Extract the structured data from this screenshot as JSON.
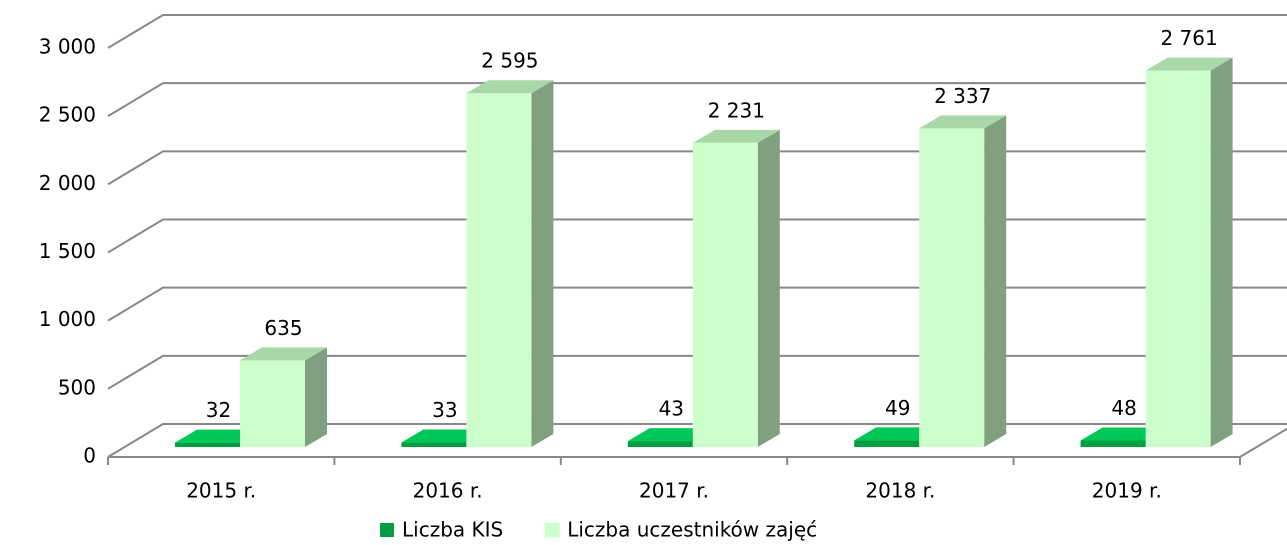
{
  "chart_data": {
    "type": "bar3d",
    "categories": [
      "2015 r.",
      "2016 r.",
      "2017 r.",
      "2018 r.",
      "2019 r."
    ],
    "series": [
      {
        "name": "Liczba KIS",
        "color": "#00a040",
        "values": [
          32,
          33,
          43,
          49,
          48
        ]
      },
      {
        "name": "Liczba uczestników zajęć",
        "color": "#ccffcc",
        "values": [
          635,
          2595,
          2231,
          2337,
          2761
        ],
        "value_labels": [
          "635",
          "2 595",
          "2 231",
          "2 337",
          "2 761"
        ]
      }
    ],
    "ylim": [
      0,
      3000
    ],
    "yticks": [
      0,
      500,
      {
        "value": 1000,
        "label": "1 000"
      },
      {
        "value": 1500,
        "label": "1 500"
      },
      {
        "value": 2000,
        "label": "2 000"
      },
      {
        "value": 2500,
        "label": "2 500"
      },
      {
        "value": 3000,
        "label": "3 000"
      }
    ],
    "grid": true,
    "legend": "bottom"
  }
}
